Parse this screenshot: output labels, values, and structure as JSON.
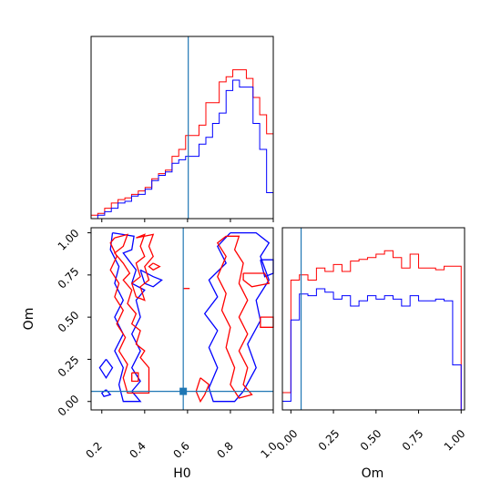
{
  "chart_data": [
    {
      "type": "histogram",
      "panel": "H0 marginal",
      "x": [
        0.1,
        0.133,
        0.167,
        0.2,
        0.233,
        0.267,
        0.3,
        0.333,
        0.367,
        0.4,
        0.433,
        0.467,
        0.5,
        0.533,
        0.567,
        0.6,
        0.633,
        0.667,
        0.7,
        0.733,
        0.767,
        0.8,
        0.833,
        0.867,
        0.9,
        0.933,
        0.967,
        1.0
      ],
      "series": [
        {
          "color": "#ff0000",
          "values": [
            0.02,
            0.03,
            0.06,
            0.09,
            0.11,
            0.12,
            0.14,
            0.16,
            0.18,
            0.23,
            0.26,
            0.28,
            0.36,
            0.4,
            0.48,
            0.48,
            0.54,
            0.67,
            0.67,
            0.79,
            0.82,
            0.86,
            0.86,
            0.81,
            0.7,
            0.6,
            0.49
          ]
        },
        {
          "color": "#0000ff",
          "values": [
            0.0,
            0.02,
            0.04,
            0.06,
            0.09,
            0.1,
            0.13,
            0.14,
            0.17,
            0.22,
            0.25,
            0.27,
            0.32,
            0.34,
            0.36,
            0.36,
            0.43,
            0.47,
            0.55,
            0.61,
            0.74,
            0.8,
            0.76,
            0.76,
            0.55,
            0.4,
            0.15
          ]
        }
      ],
      "truth_line": 0.58,
      "xlim": [
        0.1,
        1.0
      ]
    },
    {
      "type": "contour",
      "panel": "H0 vs Om joint",
      "xlabel": "H0",
      "ylabel": "Om",
      "xlim": [
        0.15,
        1.0
      ],
      "ylim": [
        -0.05,
        1.03
      ],
      "xticks": [
        "0.2",
        "0.4",
        "0.6",
        "0.8",
        "1.0"
      ],
      "yticks": [
        "0.00",
        "0.25",
        "0.50",
        "0.75",
        "1.00"
      ],
      "truth_point": [
        0.58,
        0.06
      ],
      "series": [
        {
          "color": "#0000ff",
          "contours": [
            [
              [
                0.25,
                1.0
              ],
              [
                0.35,
                0.98
              ],
              [
                0.34,
                0.9
              ],
              [
                0.3,
                0.88
              ],
              [
                0.36,
                0.78
              ],
              [
                0.34,
                0.7
              ],
              [
                0.4,
                0.66
              ],
              [
                0.36,
                0.6
              ],
              [
                0.38,
                0.5
              ],
              [
                0.34,
                0.4
              ],
              [
                0.38,
                0.3
              ],
              [
                0.34,
                0.2
              ],
              [
                0.38,
                0.12
              ],
              [
                0.34,
                0.06
              ],
              [
                0.38,
                0.0
              ],
              [
                0.3,
                0.0
              ],
              [
                0.28,
                0.1
              ],
              [
                0.3,
                0.2
              ],
              [
                0.26,
                0.3
              ],
              [
                0.3,
                0.4
              ],
              [
                0.26,
                0.5
              ],
              [
                0.3,
                0.6
              ],
              [
                0.26,
                0.7
              ],
              [
                0.28,
                0.8
              ],
              [
                0.24,
                0.9
              ],
              [
                0.25,
                1.0
              ]
            ],
            [
              [
                0.38,
                0.78
              ],
              [
                0.44,
                0.74
              ],
              [
                0.48,
                0.72
              ],
              [
                0.44,
                0.68
              ],
              [
                0.4,
                0.7
              ],
              [
                0.38,
                0.78
              ]
            ],
            [
              [
                0.22,
                0.25
              ],
              [
                0.25,
                0.2
              ],
              [
                0.22,
                0.14
              ],
              [
                0.19,
                0.2
              ],
              [
                0.22,
                0.25
              ]
            ],
            [
              [
                0.22,
                0.07
              ],
              [
                0.24,
                0.04
              ],
              [
                0.21,
                0.03
              ],
              [
                0.2,
                0.05
              ],
              [
                0.22,
                0.07
              ]
            ],
            [
              [
                0.8,
                1.0
              ],
              [
                0.92,
                1.0
              ],
              [
                0.98,
                0.94
              ],
              [
                0.94,
                0.86
              ],
              [
                0.98,
                0.72
              ],
              [
                0.92,
                0.6
              ],
              [
                0.94,
                0.48
              ],
              [
                0.88,
                0.34
              ],
              [
                0.92,
                0.2
              ],
              [
                0.86,
                0.06
              ],
              [
                0.82,
                0.0
              ],
              [
                0.72,
                0.0
              ],
              [
                0.7,
                0.08
              ],
              [
                0.74,
                0.2
              ],
              [
                0.7,
                0.32
              ],
              [
                0.74,
                0.42
              ],
              [
                0.68,
                0.52
              ],
              [
                0.74,
                0.62
              ],
              [
                0.7,
                0.72
              ],
              [
                0.78,
                0.82
              ],
              [
                0.74,
                0.92
              ],
              [
                0.8,
                1.0
              ]
            ],
            [
              [
                0.94,
                0.84
              ],
              [
                1.0,
                0.84
              ],
              [
                1.0,
                0.76
              ],
              [
                0.96,
                0.74
              ],
              [
                0.94,
                0.84
              ]
            ]
          ]
        },
        {
          "color": "#ff0000",
          "contours": [
            [
              [
                0.26,
                0.97
              ],
              [
                0.32,
                0.99
              ],
              [
                0.3,
                0.92
              ],
              [
                0.26,
                0.88
              ],
              [
                0.3,
                0.82
              ],
              [
                0.33,
                0.76
              ],
              [
                0.3,
                0.72
              ],
              [
                0.34,
                0.66
              ],
              [
                0.32,
                0.58
              ],
              [
                0.36,
                0.52
              ],
              [
                0.34,
                0.46
              ],
              [
                0.38,
                0.42
              ],
              [
                0.36,
                0.34
              ],
              [
                0.4,
                0.3
              ],
              [
                0.38,
                0.26
              ],
              [
                0.42,
                0.2
              ],
              [
                0.42,
                0.05
              ],
              [
                0.32,
                0.05
              ],
              [
                0.3,
                0.14
              ],
              [
                0.32,
                0.22
              ],
              [
                0.28,
                0.3
              ],
              [
                0.31,
                0.38
              ],
              [
                0.27,
                0.46
              ],
              [
                0.3,
                0.54
              ],
              [
                0.26,
                0.62
              ],
              [
                0.28,
                0.7
              ],
              [
                0.24,
                0.78
              ],
              [
                0.27,
                0.86
              ],
              [
                0.24,
                0.94
              ],
              [
                0.26,
                0.97
              ]
            ],
            [
              [
                0.36,
                0.97
              ],
              [
                0.4,
                0.99
              ],
              [
                0.38,
                0.92
              ],
              [
                0.4,
                0.86
              ],
              [
                0.36,
                0.82
              ],
              [
                0.38,
                0.74
              ],
              [
                0.34,
                0.7
              ],
              [
                0.36,
                0.62
              ],
              [
                0.4,
                0.6
              ],
              [
                0.38,
                0.68
              ],
              [
                0.42,
                0.72
              ],
              [
                0.4,
                0.8
              ],
              [
                0.44,
                0.86
              ],
              [
                0.42,
                0.92
              ],
              [
                0.44,
                0.99
              ],
              [
                0.36,
                0.97
              ]
            ],
            [
              [
                0.34,
                0.17
              ],
              [
                0.37,
                0.17
              ],
              [
                0.37,
                0.12
              ],
              [
                0.34,
                0.12
              ],
              [
                0.34,
                0.17
              ]
            ],
            [
              [
                0.44,
                0.82
              ],
              [
                0.47,
                0.8
              ],
              [
                0.44,
                0.78
              ],
              [
                0.42,
                0.8
              ],
              [
                0.44,
                0.82
              ]
            ],
            [
              [
                0.78,
                0.98
              ],
              [
                0.84,
                0.98
              ],
              [
                0.82,
                0.9
              ],
              [
                0.86,
                0.82
              ],
              [
                0.84,
                0.7
              ],
              [
                0.88,
                0.6
              ],
              [
                0.84,
                0.5
              ],
              [
                0.88,
                0.4
              ],
              [
                0.84,
                0.3
              ],
              [
                0.88,
                0.2
              ],
              [
                0.86,
                0.1
              ],
              [
                0.9,
                0.04
              ],
              [
                0.84,
                0.02
              ],
              [
                0.8,
                0.1
              ],
              [
                0.82,
                0.2
              ],
              [
                0.78,
                0.32
              ],
              [
                0.8,
                0.44
              ],
              [
                0.76,
                0.54
              ],
              [
                0.78,
                0.64
              ],
              [
                0.74,
                0.74
              ],
              [
                0.78,
                0.86
              ],
              [
                0.74,
                0.94
              ],
              [
                0.78,
                0.98
              ]
            ],
            [
              [
                0.86,
                0.76
              ],
              [
                0.96,
                0.76
              ],
              [
                0.98,
                0.7
              ],
              [
                0.9,
                0.68
              ],
              [
                0.86,
                0.72
              ],
              [
                0.86,
                0.76
              ]
            ],
            [
              [
                0.66,
                0.14
              ],
              [
                0.7,
                0.1
              ],
              [
                0.68,
                0.04
              ],
              [
                0.66,
                0.0
              ],
              [
                0.64,
                0.06
              ],
              [
                0.66,
                0.14
              ]
            ],
            [
              [
                0.94,
                0.5
              ],
              [
                1.0,
                0.5
              ],
              [
                1.0,
                0.44
              ],
              [
                0.94,
                0.44
              ],
              [
                0.94,
                0.5
              ]
            ],
            [
              [
                0.58,
                0.67
              ],
              [
                0.61,
                0.67
              ]
            ]
          ]
        }
      ]
    },
    {
      "type": "histogram",
      "panel": "Om marginal",
      "xlabel": "Om",
      "x": [
        -0.05,
        0.0,
        0.05,
        0.1,
        0.15,
        0.2,
        0.25,
        0.3,
        0.35,
        0.4,
        0.45,
        0.5,
        0.55,
        0.6,
        0.65,
        0.7,
        0.75,
        0.8,
        0.85,
        0.9,
        0.95,
        1.0
      ],
      "series": [
        {
          "color": "#ff0000",
          "values": [
            0.1,
            0.75,
            0.78,
            0.75,
            0.82,
            0.8,
            0.84,
            0.8,
            0.86,
            0.87,
            0.88,
            0.9,
            0.92,
            0.88,
            0.82,
            0.9,
            0.82,
            0.82,
            0.81,
            0.83,
            0.83
          ]
        },
        {
          "color": "#0000ff",
          "values": [
            0.05,
            0.52,
            0.67,
            0.66,
            0.7,
            0.68,
            0.64,
            0.66,
            0.6,
            0.63,
            0.66,
            0.64,
            0.66,
            0.64,
            0.6,
            0.66,
            0.63,
            0.63,
            0.64,
            0.63,
            0.26
          ]
        }
      ],
      "truth_line": 0.06,
      "xlim": [
        -0.05,
        1.02
      ],
      "xticks": [
        "0.00",
        "0.25",
        "0.50",
        "0.75",
        "1.00"
      ]
    }
  ]
}
